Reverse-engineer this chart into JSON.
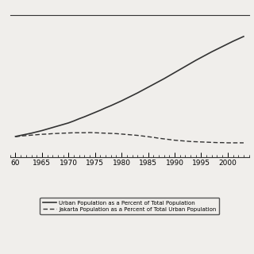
{
  "years": [
    1960,
    1961,
    1962,
    1963,
    1964,
    1965,
    1966,
    1967,
    1968,
    1969,
    1970,
    1971,
    1972,
    1973,
    1974,
    1975,
    1976,
    1977,
    1978,
    1979,
    1980,
    1981,
    1982,
    1983,
    1984,
    1985,
    1986,
    1987,
    1988,
    1989,
    1990,
    1991,
    1992,
    1993,
    1994,
    1995,
    1996,
    1997,
    1998,
    1999,
    2000,
    2001,
    2002,
    2003
  ],
  "urban_pct": [
    14.6,
    15.1,
    15.6,
    16.1,
    16.7,
    17.3,
    18.0,
    18.7,
    19.4,
    20.1,
    20.8,
    21.7,
    22.7,
    23.6,
    24.6,
    25.6,
    26.6,
    27.7,
    28.7,
    29.8,
    30.9,
    32.1,
    33.3,
    34.5,
    35.8,
    37.1,
    38.4,
    39.7,
    41.0,
    42.4,
    43.8,
    45.2,
    46.6,
    48.0,
    49.4,
    50.7,
    52.0,
    53.3,
    54.5,
    55.7,
    56.9,
    58.1,
    59.2,
    60.3
  ],
  "jakarta_pct": [
    14.5,
    14.8,
    15.0,
    15.2,
    15.4,
    15.6,
    15.7,
    15.9,
    16.0,
    16.1,
    16.2,
    16.3,
    16.3,
    16.3,
    16.4,
    16.3,
    16.2,
    16.1,
    16.0,
    15.9,
    15.7,
    15.5,
    15.3,
    15.1,
    14.8,
    14.5,
    14.2,
    13.8,
    13.5,
    13.2,
    12.9,
    12.7,
    12.5,
    12.3,
    12.2,
    12.1,
    12.0,
    11.9,
    11.8,
    11.8,
    11.7,
    11.7,
    11.7,
    11.7
  ],
  "xlim": [
    1959,
    2004
  ],
  "xticks": [
    1960,
    1965,
    1970,
    1975,
    1980,
    1985,
    1990,
    1995,
    2000
  ],
  "xticklabels": [
    "60",
    "1965",
    "1970",
    "1975",
    "1980",
    "1985",
    "1990",
    "1995",
    "2000"
  ],
  "background_color": "#f0eeeb",
  "line_color": "#333333",
  "legend_label_urban": "Urban Population as a Percent of Total Population",
  "legend_label_jakarta": "Jakarta Population as a Percent of Total Urban Population"
}
